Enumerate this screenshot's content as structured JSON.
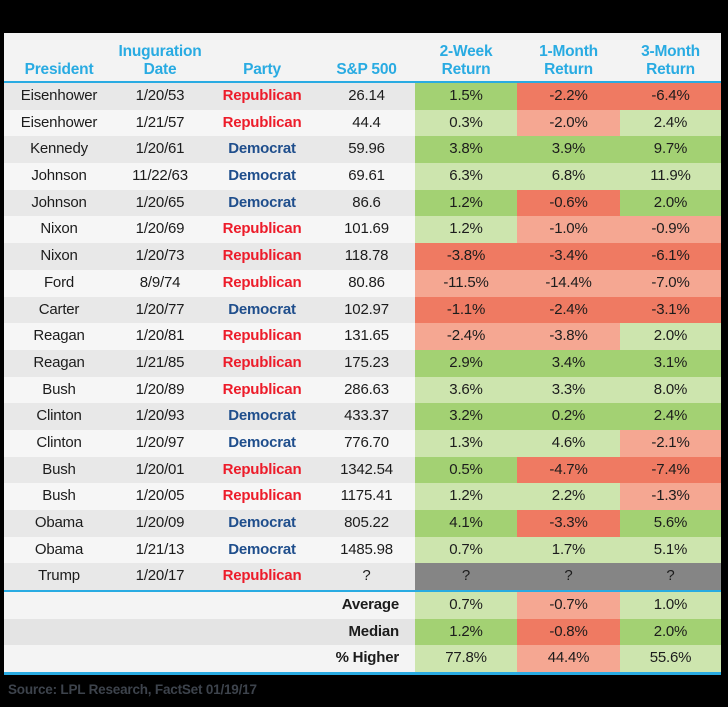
{
  "chart_data": {
    "type": "table",
    "title": "S&P 500 returns following presidential inaugurations",
    "columns": [
      "President",
      "Inuguration\nDate",
      "Party",
      "S&P 500",
      "2-Week\nReturn",
      "1-Month\nReturn",
      "3-Month\nReturn"
    ],
    "rows": [
      {
        "president": "Eisenhower",
        "date": "1/20/53",
        "party": "Republican",
        "sp500": "26.14",
        "r2w": {
          "text": "1.5%",
          "tone": "g"
        },
        "r1m": {
          "text": "-2.2%",
          "tone": "r"
        },
        "r3m": {
          "text": "-6.4%",
          "tone": "r"
        }
      },
      {
        "president": "Eisenhower",
        "date": "1/21/57",
        "party": "Republican",
        "sp500": "44.4",
        "r2w": {
          "text": "0.3%",
          "tone": "gl"
        },
        "r1m": {
          "text": "-2.0%",
          "tone": "rl"
        },
        "r3m": {
          "text": "2.4%",
          "tone": "gl"
        }
      },
      {
        "president": "Kennedy",
        "date": "1/20/61",
        "party": "Democrat",
        "sp500": "59.96",
        "r2w": {
          "text": "3.8%",
          "tone": "g"
        },
        "r1m": {
          "text": "3.9%",
          "tone": "g"
        },
        "r3m": {
          "text": "9.7%",
          "tone": "g"
        }
      },
      {
        "president": "Johnson",
        "date": "11/22/63",
        "party": "Democrat",
        "sp500": "69.61",
        "r2w": {
          "text": "6.3%",
          "tone": "gl"
        },
        "r1m": {
          "text": "6.8%",
          "tone": "gl"
        },
        "r3m": {
          "text": "11.9%",
          "tone": "gl"
        }
      },
      {
        "president": "Johnson",
        "date": "1/20/65",
        "party": "Democrat",
        "sp500": "86.6",
        "r2w": {
          "text": "1.2%",
          "tone": "g"
        },
        "r1m": {
          "text": "-0.6%",
          "tone": "r"
        },
        "r3m": {
          "text": "2.0%",
          "tone": "g"
        }
      },
      {
        "president": "Nixon",
        "date": "1/20/69",
        "party": "Republican",
        "sp500": "101.69",
        "r2w": {
          "text": "1.2%",
          "tone": "gl"
        },
        "r1m": {
          "text": "-1.0%",
          "tone": "rl"
        },
        "r3m": {
          "text": "-0.9%",
          "tone": "rl"
        }
      },
      {
        "president": "Nixon",
        "date": "1/20/73",
        "party": "Republican",
        "sp500": "118.78",
        "r2w": {
          "text": "-3.8%",
          "tone": "r"
        },
        "r1m": {
          "text": "-3.4%",
          "tone": "r"
        },
        "r3m": {
          "text": "-6.1%",
          "tone": "r"
        }
      },
      {
        "president": "Ford",
        "date": "8/9/74",
        "party": "Republican",
        "sp500": "80.86",
        "r2w": {
          "text": "-11.5%",
          "tone": "rl"
        },
        "r1m": {
          "text": "-14.4%",
          "tone": "rl"
        },
        "r3m": {
          "text": "-7.0%",
          "tone": "rl"
        }
      },
      {
        "president": "Carter",
        "date": "1/20/77",
        "party": "Democrat",
        "sp500": "102.97",
        "r2w": {
          "text": "-1.1%",
          "tone": "r"
        },
        "r1m": {
          "text": "-2.4%",
          "tone": "r"
        },
        "r3m": {
          "text": "-3.1%",
          "tone": "r"
        }
      },
      {
        "president": "Reagan",
        "date": "1/20/81",
        "party": "Republican",
        "sp500": "131.65",
        "r2w": {
          "text": "-2.4%",
          "tone": "rl"
        },
        "r1m": {
          "text": "-3.8%",
          "tone": "rl"
        },
        "r3m": {
          "text": "2.0%",
          "tone": "gl"
        }
      },
      {
        "president": "Reagan",
        "date": "1/21/85",
        "party": "Republican",
        "sp500": "175.23",
        "r2w": {
          "text": "2.9%",
          "tone": "g"
        },
        "r1m": {
          "text": "3.4%",
          "tone": "g"
        },
        "r3m": {
          "text": "3.1%",
          "tone": "g"
        }
      },
      {
        "president": "Bush",
        "date": "1/20/89",
        "party": "Republican",
        "sp500": "286.63",
        "r2w": {
          "text": "3.6%",
          "tone": "gl"
        },
        "r1m": {
          "text": "3.3%",
          "tone": "gl"
        },
        "r3m": {
          "text": "8.0%",
          "tone": "gl"
        }
      },
      {
        "president": "Clinton",
        "date": "1/20/93",
        "party": "Democrat",
        "sp500": "433.37",
        "r2w": {
          "text": "3.2%",
          "tone": "g"
        },
        "r1m": {
          "text": "0.2%",
          "tone": "g"
        },
        "r3m": {
          "text": "2.4%",
          "tone": "g"
        }
      },
      {
        "president": "Clinton",
        "date": "1/20/97",
        "party": "Democrat",
        "sp500": "776.70",
        "r2w": {
          "text": "1.3%",
          "tone": "gl"
        },
        "r1m": {
          "text": "4.6%",
          "tone": "gl"
        },
        "r3m": {
          "text": "-2.1%",
          "tone": "rl"
        }
      },
      {
        "president": "Bush",
        "date": "1/20/01",
        "party": "Republican",
        "sp500": "1342.54",
        "r2w": {
          "text": "0.5%",
          "tone": "g"
        },
        "r1m": {
          "text": "-4.7%",
          "tone": "r"
        },
        "r3m": {
          "text": "-7.4%",
          "tone": "r"
        }
      },
      {
        "president": "Bush",
        "date": "1/20/05",
        "party": "Republican",
        "sp500": "1175.41",
        "r2w": {
          "text": "1.2%",
          "tone": "gl"
        },
        "r1m": {
          "text": "2.2%",
          "tone": "gl"
        },
        "r3m": {
          "text": "-1.3%",
          "tone": "rl"
        }
      },
      {
        "president": "Obama",
        "date": "1/20/09",
        "party": "Democrat",
        "sp500": "805.22",
        "r2w": {
          "text": "4.1%",
          "tone": "g"
        },
        "r1m": {
          "text": "-3.3%",
          "tone": "r"
        },
        "r3m": {
          "text": "5.6%",
          "tone": "g"
        }
      },
      {
        "president": "Obama",
        "date": "1/21/13",
        "party": "Democrat",
        "sp500": "1485.98",
        "r2w": {
          "text": "0.7%",
          "tone": "gl"
        },
        "r1m": {
          "text": "1.7%",
          "tone": "gl"
        },
        "r3m": {
          "text": "5.1%",
          "tone": "gl"
        }
      },
      {
        "president": "Trump",
        "date": "1/20/17",
        "party": "Republican",
        "sp500": "?",
        "r2w": {
          "text": "?",
          "tone": "q"
        },
        "r1m": {
          "text": "?",
          "tone": "q"
        },
        "r3m": {
          "text": "?",
          "tone": "q"
        }
      }
    ],
    "summary": [
      {
        "label": "Average",
        "r2w": {
          "text": "0.7%",
          "tone": "gl"
        },
        "r1m": {
          "text": "-0.7%",
          "tone": "rl"
        },
        "r3m": {
          "text": "1.0%",
          "tone": "gl"
        }
      },
      {
        "label": "Median",
        "r2w": {
          "text": "1.2%",
          "tone": "g"
        },
        "r1m": {
          "text": "-0.8%",
          "tone": "r"
        },
        "r3m": {
          "text": "2.0%",
          "tone": "g"
        }
      },
      {
        "label": "% Higher",
        "r2w": {
          "text": "77.8%",
          "tone": "gl"
        },
        "r1m": {
          "text": "44.4%",
          "tone": "rl"
        },
        "r3m": {
          "text": "55.6%",
          "tone": "gl"
        }
      }
    ]
  },
  "source_note": "Source: LPL Research, FactSet  01/19/17",
  "colors": {
    "accent_cyan": "#29abe2",
    "green_dark": "#a3d173",
    "green_light": "#cde5ae",
    "red_dark": "#ef7a62",
    "red_light": "#f5a792",
    "unknown_gray": "#858585",
    "republican": "#ed1c2a",
    "democrat": "#1f4e8c"
  }
}
